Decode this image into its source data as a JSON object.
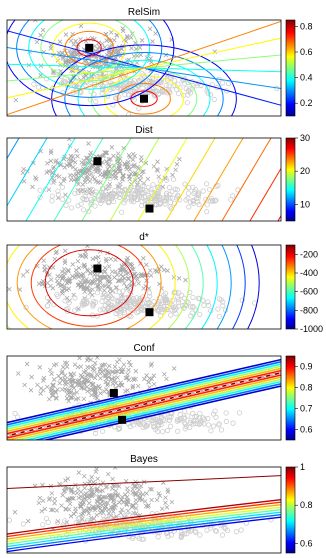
{
  "chart_data": [
    {
      "type": "contour",
      "title": "RelSim",
      "colorbar": {
        "ticks": [
          "0.8",
          "0.6",
          "0.4",
          "0.2"
        ],
        "range": [
          0.1,
          0.85
        ]
      },
      "prototypes": [
        {
          "x": 0.3,
          "y": 0.71
        },
        {
          "x": 0.5,
          "y": 0.18
        }
      ],
      "colors": {
        "marker": "#000000",
        "cluster_x": "#a9a9a9",
        "cluster_o": "#cfcfcf"
      }
    },
    {
      "type": "contour",
      "title": "Dist",
      "colorbar": {
        "ticks": [
          "30",
          "20",
          "10"
        ],
        "range": [
          5,
          30
        ]
      },
      "prototypes": [
        {
          "x": 0.33,
          "y": 0.72
        },
        {
          "x": 0.52,
          "y": 0.15
        }
      ]
    },
    {
      "type": "contour",
      "title": "d*",
      "colorbar": {
        "ticks": [
          "-200",
          "-400",
          "-600",
          "-800",
          "-1000"
        ],
        "range": [
          -1000,
          -100
        ]
      },
      "prototypes": [
        {
          "x": 0.33,
          "y": 0.72
        },
        {
          "x": 0.52,
          "y": 0.2
        }
      ]
    },
    {
      "type": "contour",
      "title": "Conf",
      "colorbar": {
        "ticks": [
          "0.9",
          "0.8",
          "0.7",
          "0.6"
        ],
        "range": [
          0.55,
          0.95
        ]
      },
      "prototypes": [
        {
          "x": 0.39,
          "y": 0.56
        },
        {
          "x": 0.42,
          "y": 0.24
        }
      ]
    },
    {
      "type": "contour",
      "title": "Bayes",
      "colorbar": {
        "ticks": [
          "1",
          "0.8",
          "0.6"
        ],
        "range": [
          0.55,
          1.0
        ]
      },
      "prototypes": []
    }
  ]
}
